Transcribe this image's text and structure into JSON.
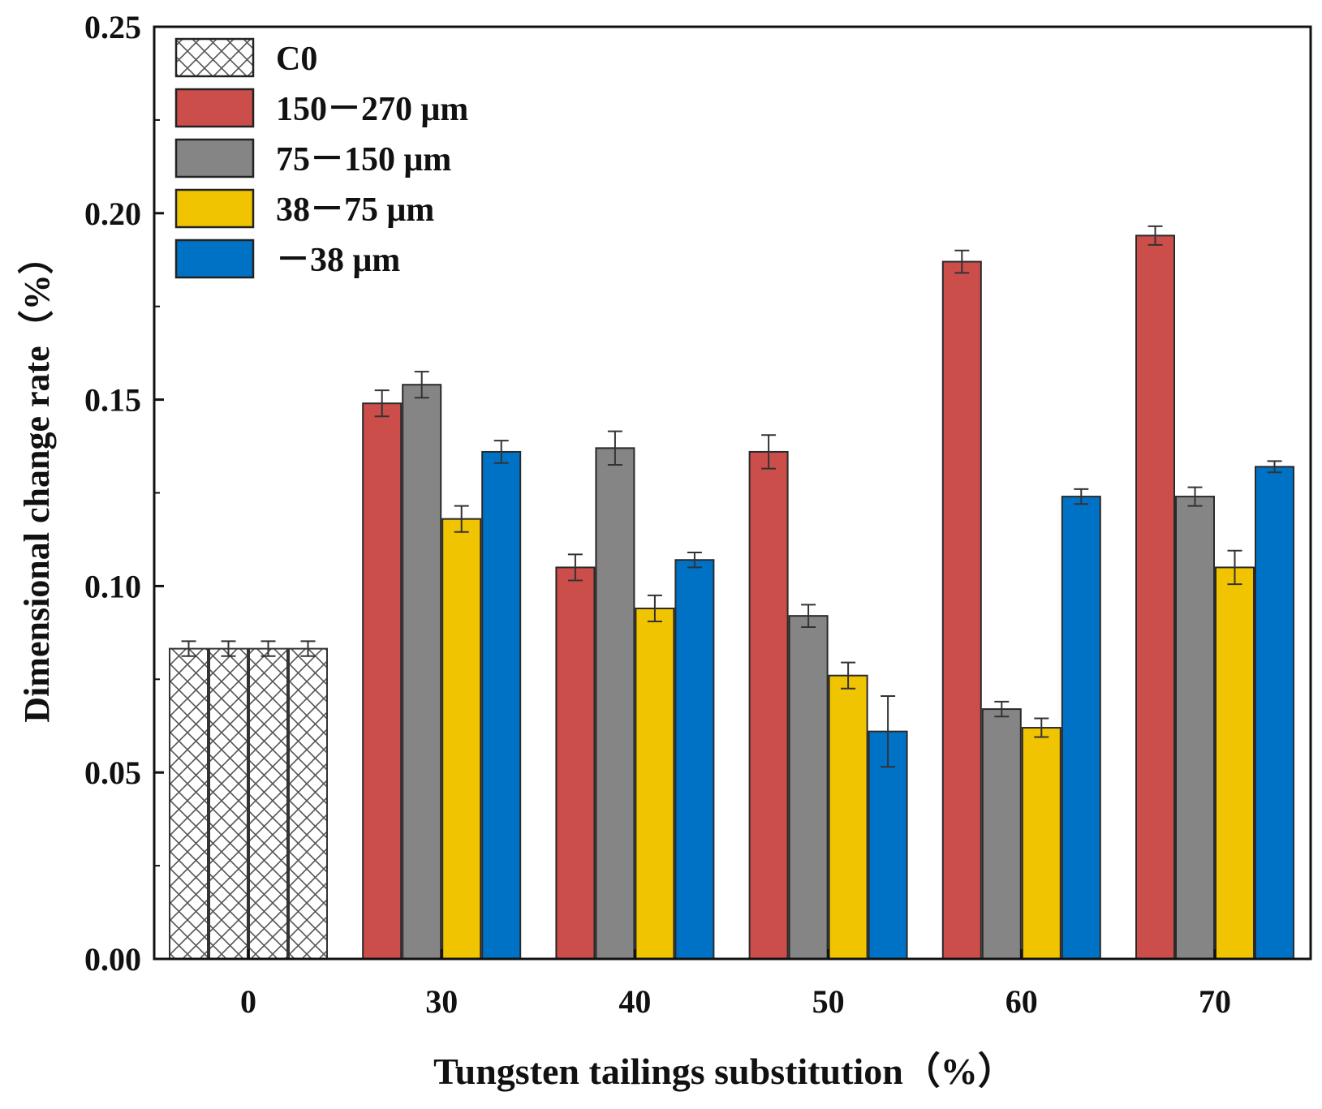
{
  "chart_data": {
    "type": "bar",
    "xlabel": "Tungsten tailings substitution（%）",
    "ylabel": "Dimensional change rate（%）",
    "ylim": [
      0,
      0.25
    ],
    "yticks": [
      "0.00",
      "0.05",
      "0.10",
      "0.15",
      "0.20",
      "0.25"
    ],
    "categories": [
      "0",
      "30",
      "40",
      "50",
      "60",
      "70"
    ],
    "legend_position": "top-left",
    "series": [
      {
        "name": "C0",
        "pattern": "crosshatch",
        "color": "#ffffff",
        "values": [
          0.0832,
          null,
          null,
          null,
          null,
          null
        ],
        "errors": [
          0.002,
          null,
          null,
          null,
          null,
          null
        ]
      },
      {
        "name": "150－270 μm",
        "color": "#cc4e4a",
        "values": [
          null,
          0.149,
          0.105,
          0.136,
          0.187,
          0.194
        ],
        "errors": [
          null,
          0.0035,
          0.0035,
          0.0045,
          0.003,
          0.0025
        ]
      },
      {
        "name": "75－150 μm",
        "color": "#858585",
        "values": [
          null,
          0.154,
          0.137,
          0.092,
          0.067,
          0.124
        ],
        "errors": [
          null,
          0.0035,
          0.0045,
          0.003,
          0.002,
          0.0025
        ]
      },
      {
        "name": "38－75 μm",
        "color": "#f0c400",
        "values": [
          null,
          0.118,
          0.094,
          0.076,
          0.062,
          0.105
        ],
        "errors": [
          null,
          0.0035,
          0.0035,
          0.0035,
          0.0025,
          0.0045
        ]
      },
      {
        "name": "－38 μm",
        "color": "#0072c6",
        "values": [
          null,
          0.136,
          0.107,
          0.061,
          0.124,
          0.132
        ],
        "errors": [
          null,
          0.003,
          0.002,
          0.0095,
          0.002,
          0.0015
        ]
      }
    ]
  }
}
